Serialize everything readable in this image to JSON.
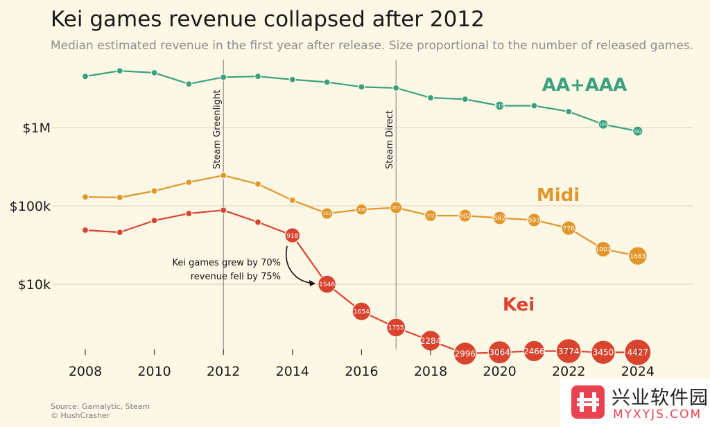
{
  "title": "Kei games revenue collapsed after 2012",
  "subtitle": "Median estimated revenue in the first year after release. Size proportional to the number of released games.",
  "source_line1": "Source: Gamalytic, Steam",
  "source_line2": "© HushCrasher",
  "watermark": {
    "line1": "兴业软件园",
    "line2": "MYXYJS.COM"
  },
  "chart_data": {
    "type": "line",
    "title": "Kei games revenue collapsed after 2012",
    "xlabel": "",
    "ylabel": "",
    "y_scale": "log",
    "xlim": [
      2008,
      2024
    ],
    "ylim": [
      1000,
      7000000
    ],
    "x_ticks": [
      2008,
      2010,
      2012,
      2014,
      2016,
      2018,
      2020,
      2022,
      2024
    ],
    "y_ticks": [
      {
        "value": 10000,
        "label": "$10k"
      },
      {
        "value": 100000,
        "label": "$100k"
      },
      {
        "value": 1000000,
        "label": "$1M"
      }
    ],
    "grid": "horizontal",
    "x": [
      2008,
      2009,
      2010,
      2011,
      2012,
      2013,
      2014,
      2015,
      2016,
      2017,
      2018,
      2019,
      2020,
      2021,
      2022,
      2023,
      2024
    ],
    "series": [
      {
        "name": "AA+AAA",
        "color": "#3aa17e",
        "values": [
          4500000,
          5300000,
          5000000,
          3600000,
          4400000,
          4500000,
          4100000,
          3800000,
          3300000,
          3200000,
          2400000,
          2300000,
          1900000,
          1900000,
          1600000,
          1100000,
          900000
        ],
        "counts": [
          "",
          "",
          "",
          "",
          "",
          "",
          "",
          "",
          "",
          "",
          "",
          "",
          "117",
          "",
          "",
          "165",
          "192"
        ]
      },
      {
        "name": "Midi",
        "color": "#e1962b",
        "values": [
          130000,
          128000,
          155000,
          200000,
          245000,
          190000,
          118000,
          80000,
          90000,
          95000,
          75000,
          75000,
          70000,
          66000,
          52000,
          28000,
          23000
        ],
        "counts": [
          "",
          "",
          "",
          "",
          "",
          "",
          "",
          "353",
          "306",
          "407",
          "372",
          "502",
          "582",
          "597",
          "776",
          "1001",
          "1683"
        ]
      },
      {
        "name": "Kei",
        "color": "#d9442f",
        "values": [
          49000,
          46000,
          65000,
          80000,
          88000,
          62000,
          42000,
          10000,
          4500,
          2800,
          1900,
          1300,
          1350,
          1400,
          1400,
          1350,
          1350
        ],
        "counts": [
          "",
          "",
          "",
          "",
          "",
          "",
          "918",
          "1546",
          "1654",
          "1755",
          "2284",
          "2996",
          "3064",
          "2466",
          "3774",
          "3450",
          "4427"
        ]
      }
    ],
    "events": [
      {
        "x": 2012,
        "label": "Steam Greenlight"
      },
      {
        "x": 2017,
        "label": "Steam Direct"
      }
    ],
    "annotation": {
      "line1": "Kei games grew by 70%",
      "line2": "revenue fell by 75%",
      "from_x": 2014,
      "to_x": 2015
    }
  }
}
